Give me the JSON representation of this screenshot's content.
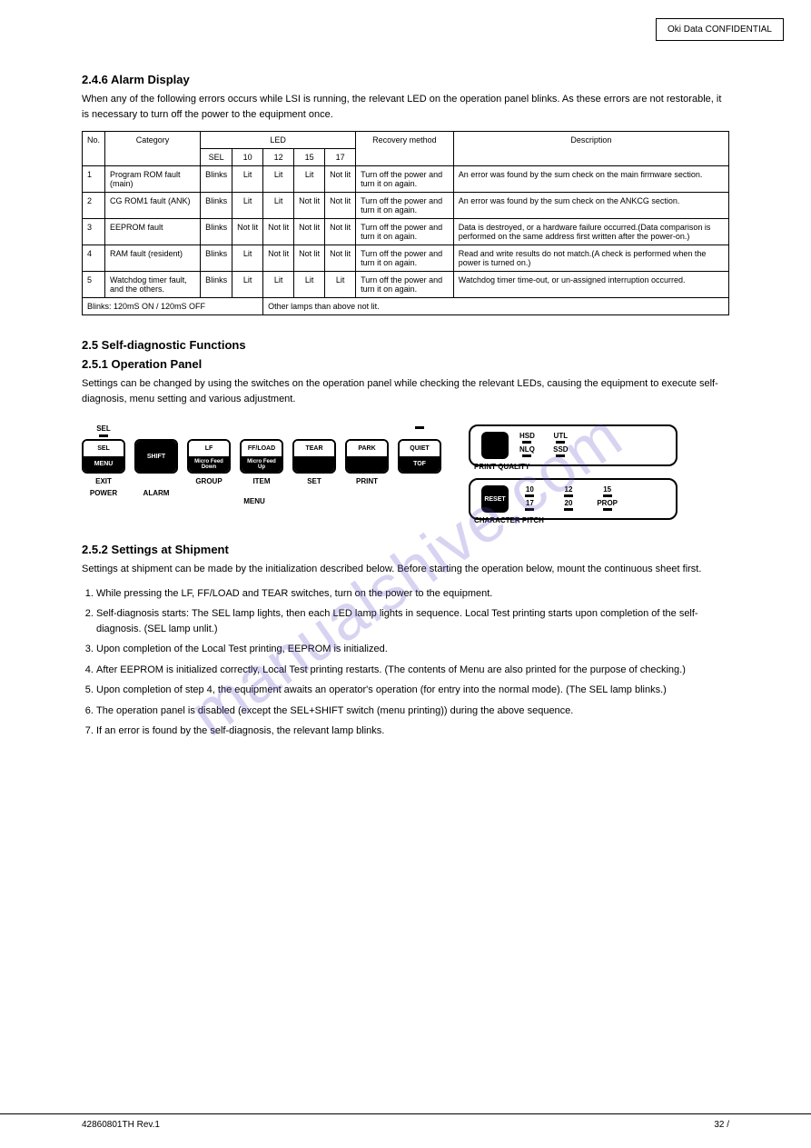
{
  "corner_box": "Oki Data CONFIDENTIAL",
  "section1": {
    "title": "2.4.6 Alarm Display",
    "intro": "When any of the following errors occurs while LSI is running, the relevant LED on the operation panel blinks. As these errors are not restorable, it is necessary to turn off the power to the equipment once.",
    "table": {
      "header1": [
        "No.",
        "Category",
        "LED",
        "Recovery method",
        "Description"
      ],
      "header2": [
        "SEL",
        "10",
        "12",
        "15",
        "17"
      ],
      "rows": [
        {
          "no": "1",
          "cat": "Program ROM fault (main)",
          "leds": [
            "Blinks",
            "Lit",
            "Lit",
            "Lit",
            "Not lit"
          ],
          "recovery": "Turn off the power and turn it on again.",
          "desc": "An error was found by the sum check on the main firmware section."
        },
        {
          "no": "2",
          "cat": "CG ROM1 fault (ANK)",
          "leds": [
            "Blinks",
            "Lit",
            "Lit",
            "Not lit",
            "Not lit"
          ],
          "recovery": "Turn off the power and turn it on again.",
          "desc": "An error was found by the sum check on the ANKCG section."
        },
        {
          "no": "3",
          "cat": "EEPROM fault",
          "leds": [
            "Blinks",
            "Not lit",
            "Not lit",
            "Not lit",
            "Not lit"
          ],
          "recovery": "Turn off the power and turn it on again.",
          "desc": "Data is destroyed, or a hardware failure occurred.(Data comparison is performed on the same address first written after the power-on.)"
        },
        {
          "no": "4",
          "cat": "RAM fault (resident)",
          "leds": [
            "Blinks",
            "Lit",
            "Not lit",
            "Not lit",
            "Not lit"
          ],
          "recovery": "Turn off the power and turn it on again.",
          "desc": "Read and write results do not match.(A check is performed when the power is turned on.)"
        },
        {
          "no": "5",
          "cat": "Watchdog timer fault, and the others.",
          "leds": [
            "Blinks",
            "Lit",
            "Lit",
            "Lit",
            "Lit"
          ],
          "recovery": "Turn off the power and turn it on again.",
          "desc": "Watchdog timer time-out, or un-assigned interruption occurred."
        }
      ],
      "note_left": "Blinks: 120mS ON / 120mS OFF",
      "note_right": "Other lamps than above not lit."
    }
  },
  "section2": {
    "title": "2.5 Self-diagnostic Functions",
    "heading1": "2.5.1 Operation Panel",
    "intro": "Settings can be changed by using the switches on the operation panel while checking the relevant LEDs, causing the equipment to execute self-diagnosis, menu setting and various adjustment.",
    "panel_label1": "PRINT QUALITY",
    "panel_label2": "CHARACTER PITCH",
    "buttons": [
      {
        "sel": "SEL",
        "top": "SEL",
        "bottom": "MENU",
        "below": "EXIT",
        "sublabel": "POWER",
        "has_led": true
      },
      {
        "sel": "",
        "top": "",
        "bottom": "SHIFT",
        "below": "",
        "sublabel": "ALARM",
        "all_black": true
      },
      {
        "sel": "",
        "top": "LF",
        "bottom": "Micro Feed Down",
        "below": "GROUP",
        "sublabel": ""
      },
      {
        "sel": "",
        "top": "FF/LOAD",
        "bottom": "Micro Feed Up",
        "below": "ITEM",
        "sublabel": ""
      },
      {
        "sel": "",
        "top": "TEAR",
        "bottom": "",
        "below": "SET",
        "sublabel": ""
      },
      {
        "sel": "",
        "top": "PARK",
        "bottom": "",
        "below": "PRINT",
        "sublabel": ""
      },
      {
        "sel": "",
        "top": "QUIET",
        "bottom": "TOF",
        "below": "",
        "sublabel": "",
        "has_led": true
      }
    ],
    "menu_label": "MENU",
    "quality_items": [
      "HSD",
      "UTL",
      "NLQ",
      "SSD"
    ],
    "pitch_items": [
      "10",
      "12",
      "15",
      "17",
      "20",
      "PROP"
    ],
    "reset_label": "RESET",
    "heading2": "2.5.2 Settings at Shipment",
    "ship_intro": "Settings at shipment can be made by the initialization described below. Before starting the operation below, mount the continuous sheet first.",
    "steps": [
      "While pressing the LF, FF/LOAD and TEAR switches, turn on the power to the equipment.",
      "Self-diagnosis starts: The SEL lamp lights, then each LED lamp lights in sequence. Local Test printing starts upon completion of the self-diagnosis. (SEL lamp unlit.)",
      "Upon completion of the Local Test printing, EEPROM is initialized.",
      "After EEPROM is initialized correctly, Local Test printing restarts. (The contents of Menu are also printed for the purpose of checking.)",
      "Upon completion of step 4, the equipment awaits an operator's operation (for entry into the normal mode). (The SEL lamp blinks.)",
      "The operation panel is disabled (except the SEL+SHIFT switch (menu printing)) during the above sequence.",
      "If an error is found by the self-diagnosis, the relevant lamp blinks."
    ]
  },
  "footer": {
    "left": "42860801TH Rev.1",
    "right": "32 /"
  }
}
